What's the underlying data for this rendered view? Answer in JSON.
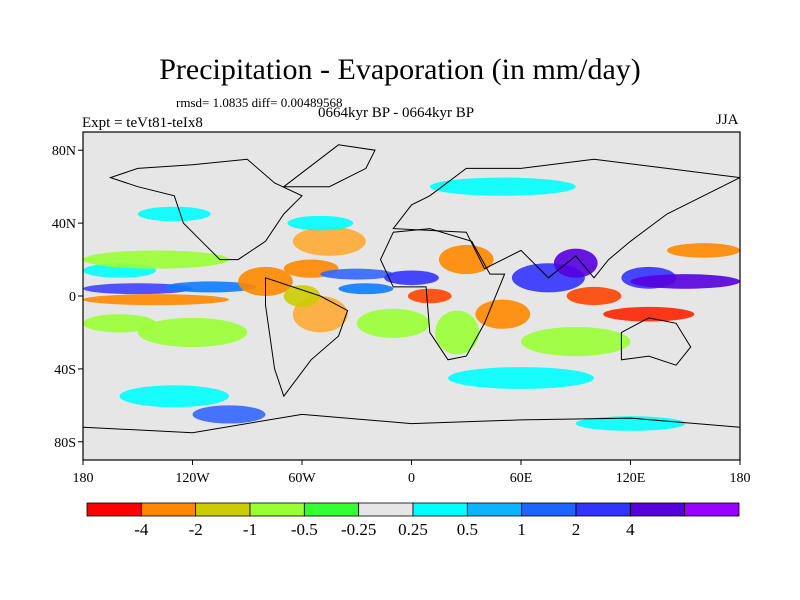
{
  "header": {
    "title": "Precipitation - Evaporation (in mm/day)",
    "stats": "rmsd= 1.0835 diff= 0.00489568",
    "period": "0664kyr BP - 0664kyr BP",
    "experiment": "Expt = teVt81-teIx8",
    "season": "JJA"
  },
  "map": {
    "background_color": "#e6e6e6",
    "lat_ticks": [
      {
        "lat": 80,
        "label": "80N"
      },
      {
        "lat": 40,
        "label": "40N"
      },
      {
        "lat": 0,
        "label": "0"
      },
      {
        "lat": -40,
        "label": "40S"
      },
      {
        "lat": -80,
        "label": "80S"
      }
    ],
    "lon_ticks": [
      {
        "lon": -180,
        "label": "180"
      },
      {
        "lon": -120,
        "label": "120W"
      },
      {
        "lon": -60,
        "label": "60W"
      },
      {
        "lon": 0,
        "label": "0"
      },
      {
        "lon": 60,
        "label": "60E"
      },
      {
        "lon": 120,
        "label": "120E"
      },
      {
        "lon": 180,
        "label": "180"
      }
    ],
    "fields": [
      {
        "lon": -150,
        "lat": 4,
        "rx": 30,
        "ry": 3,
        "color": "#4040ff"
      },
      {
        "lon": -110,
        "lat": 5,
        "rx": 25,
        "ry": 3,
        "color": "#0c7cff"
      },
      {
        "lon": -140,
        "lat": -2,
        "rx": 40,
        "ry": 3,
        "color": "#ff8800"
      },
      {
        "lon": -160,
        "lat": 14,
        "rx": 20,
        "ry": 4,
        "color": "#00ffff"
      },
      {
        "lon": -140,
        "lat": 20,
        "rx": 40,
        "ry": 5,
        "color": "#99ff33"
      },
      {
        "lon": -160,
        "lat": -15,
        "rx": 20,
        "ry": 5,
        "color": "#99ff33"
      },
      {
        "lon": -120,
        "lat": -20,
        "rx": 30,
        "ry": 8,
        "color": "#99ff33"
      },
      {
        "lon": -80,
        "lat": 8,
        "rx": 15,
        "ry": 8,
        "color": "#ff8800"
      },
      {
        "lon": -55,
        "lat": 15,
        "rx": 15,
        "ry": 5,
        "color": "#ff8800"
      },
      {
        "lon": -45,
        "lat": 30,
        "rx": 20,
        "ry": 8,
        "color": "#ffaa33"
      },
      {
        "lon": -50,
        "lat": 40,
        "rx": 18,
        "ry": 4,
        "color": "#00ffff"
      },
      {
        "lon": -30,
        "lat": 12,
        "rx": 20,
        "ry": 3,
        "color": "#3366ff"
      },
      {
        "lon": -25,
        "lat": 4,
        "rx": 15,
        "ry": 3,
        "color": "#0c7cff"
      },
      {
        "lon": 0,
        "lat": 10,
        "rx": 15,
        "ry": 4,
        "color": "#3333ff"
      },
      {
        "lon": 10,
        "lat": 0,
        "rx": 12,
        "ry": 4,
        "color": "#ff4400"
      },
      {
        "lon": -10,
        "lat": -15,
        "rx": 20,
        "ry": 8,
        "color": "#99ff33"
      },
      {
        "lon": -50,
        "lat": -10,
        "rx": 15,
        "ry": 10,
        "color": "#ffaa33"
      },
      {
        "lon": -60,
        "lat": 0,
        "rx": 10,
        "ry": 6,
        "color": "#cccc00"
      },
      {
        "lon": 25,
        "lat": -20,
        "rx": 12,
        "ry": 12,
        "color": "#99ff33"
      },
      {
        "lon": 30,
        "lat": 20,
        "rx": 15,
        "ry": 8,
        "color": "#ff8800"
      },
      {
        "lon": 50,
        "lat": -10,
        "rx": 15,
        "ry": 8,
        "color": "#ff8800"
      },
      {
        "lon": 75,
        "lat": 10,
        "rx": 20,
        "ry": 8,
        "color": "#3333ff"
      },
      {
        "lon": 90,
        "lat": 18,
        "rx": 12,
        "ry": 8,
        "color": "#5500dd"
      },
      {
        "lon": 100,
        "lat": 0,
        "rx": 15,
        "ry": 5,
        "color": "#ff4400"
      },
      {
        "lon": 130,
        "lat": 10,
        "rx": 15,
        "ry": 6,
        "color": "#3333ff"
      },
      {
        "lon": 150,
        "lat": 8,
        "rx": 30,
        "ry": 4,
        "color": "#5500dd"
      },
      {
        "lon": 160,
        "lat": 25,
        "rx": 20,
        "ry": 4,
        "color": "#ff8800"
      },
      {
        "lon": 130,
        "lat": -10,
        "rx": 25,
        "ry": 4,
        "color": "#ff2200"
      },
      {
        "lon": 90,
        "lat": -25,
        "rx": 30,
        "ry": 8,
        "color": "#99ff33"
      },
      {
        "lon": 60,
        "lat": -45,
        "rx": 40,
        "ry": 6,
        "color": "#00ffff"
      },
      {
        "lon": -130,
        "lat": -55,
        "rx": 30,
        "ry": 6,
        "color": "#00ffff"
      },
      {
        "lon": -100,
        "lat": -65,
        "rx": 20,
        "ry": 5,
        "color": "#3366ff"
      },
      {
        "lon": 120,
        "lat": -70,
        "rx": 30,
        "ry": 4,
        "color": "#00ffff"
      },
      {
        "lon": 50,
        "lat": 60,
        "rx": 40,
        "ry": 5,
        "color": "#00ffff"
      },
      {
        "lon": -130,
        "lat": 45,
        "rx": 20,
        "ry": 4,
        "color": "#00ffff"
      }
    ],
    "continents": [
      [
        [
          -165,
          65
        ],
        [
          -150,
          70
        ],
        [
          -120,
          72
        ],
        [
          -90,
          75
        ],
        [
          -75,
          62
        ],
        [
          -60,
          55
        ],
        [
          -70,
          45
        ],
        [
          -80,
          30
        ],
        [
          -95,
          20
        ],
        [
          -105,
          20
        ],
        [
          -115,
          30
        ],
        [
          -125,
          40
        ],
        [
          -130,
          55
        ],
        [
          -150,
          60
        ]
      ],
      [
        [
          -80,
          10
        ],
        [
          -50,
          0
        ],
        [
          -35,
          -8
        ],
        [
          -40,
          -22
        ],
        [
          -55,
          -35
        ],
        [
          -70,
          -55
        ],
        [
          -75,
          -40
        ],
        [
          -80,
          -5
        ]
      ],
      [
        [
          -17,
          20
        ],
        [
          -10,
          35
        ],
        [
          10,
          37
        ],
        [
          33,
          30
        ],
        [
          43,
          12
        ],
        [
          51,
          12
        ],
        [
          40,
          -15
        ],
        [
          30,
          -33
        ],
        [
          20,
          -35
        ],
        [
          10,
          -20
        ],
        [
          8,
          5
        ],
        [
          -10,
          5
        ]
      ],
      [
        [
          -10,
          37
        ],
        [
          0,
          50
        ],
        [
          10,
          55
        ],
        [
          30,
          70
        ],
        [
          60,
          70
        ],
        [
          100,
          75
        ],
        [
          140,
          70
        ],
        [
          180,
          65
        ],
        [
          160,
          55
        ],
        [
          140,
          45
        ],
        [
          120,
          30
        ],
        [
          108,
          20
        ],
        [
          100,
          10
        ],
        [
          90,
          22
        ],
        [
          75,
          10
        ],
        [
          60,
          25
        ],
        [
          40,
          15
        ],
        [
          30,
          35
        ]
      ],
      [
        [
          115,
          -20
        ],
        [
          130,
          -12
        ],
        [
          145,
          -15
        ],
        [
          153,
          -28
        ],
        [
          145,
          -38
        ],
        [
          130,
          -33
        ],
        [
          115,
          -35
        ]
      ],
      [
        [
          -70,
          60
        ],
        [
          -40,
          83
        ],
        [
          -20,
          80
        ],
        [
          -25,
          70
        ],
        [
          -45,
          60
        ]
      ],
      [
        [
          -180,
          -72
        ],
        [
          -120,
          -75
        ],
        [
          -60,
          -65
        ],
        [
          0,
          -70
        ],
        [
          60,
          -68
        ],
        [
          120,
          -67
        ],
        [
          180,
          -72
        ],
        [
          180,
          -90
        ],
        [
          -180,
          -90
        ]
      ]
    ]
  },
  "colorbar": {
    "colors": [
      "#ff0000",
      "#ff8800",
      "#cccc00",
      "#99ff33",
      "#33ff33",
      "#e6e6e6",
      "#00ffff",
      "#0cb4ff",
      "#1e64ff",
      "#3333ff",
      "#5500dd",
      "#9900ff"
    ],
    "labels": [
      "-4",
      "-2",
      "-1",
      "-0.5",
      "-0.25",
      "0.25",
      "0.5",
      "1",
      "2",
      "4"
    ]
  }
}
